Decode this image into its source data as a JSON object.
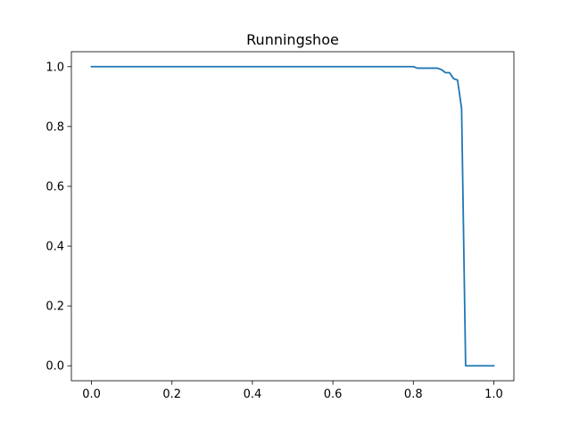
{
  "chart_data": {
    "type": "line",
    "title": "Runningshoe",
    "xlabel": "",
    "ylabel": "",
    "xlim": [
      -0.05,
      1.05
    ],
    "ylim": [
      -0.05,
      1.05
    ],
    "xticks": [
      0.0,
      0.2,
      0.4,
      0.6,
      0.8,
      1.0
    ],
    "xtick_labels": [
      "0.0",
      "0.2",
      "0.4",
      "0.6",
      "0.8",
      "1.0"
    ],
    "yticks": [
      0.0,
      0.2,
      0.4,
      0.6,
      0.8,
      1.0
    ],
    "ytick_labels": [
      "0.0",
      "0.2",
      "0.4",
      "0.6",
      "0.8",
      "1.0"
    ],
    "grid": false,
    "legend": "none",
    "series": [
      {
        "color": "#1f77b4",
        "x": [
          0.0,
          0.8,
          0.81,
          0.86,
          0.87,
          0.88,
          0.89,
          0.9,
          0.91,
          0.92,
          0.93,
          1.0
        ],
        "y": [
          1.0,
          1.0,
          0.995,
          0.995,
          0.99,
          0.98,
          0.98,
          0.96,
          0.955,
          0.86,
          0.0,
          0.0
        ]
      }
    ]
  }
}
